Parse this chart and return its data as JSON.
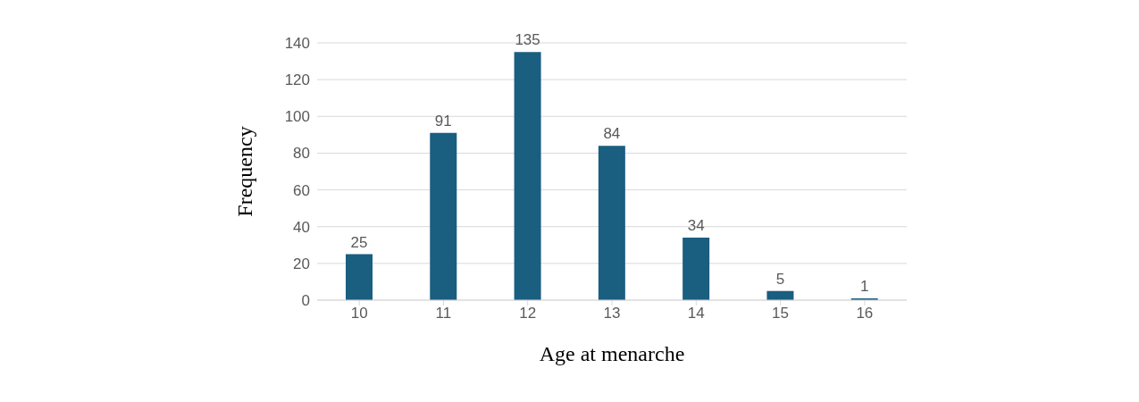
{
  "chart_data": {
    "type": "bar",
    "xlabel": "Age at menarche",
    "ylabel": "Frequency",
    "categories": [
      "10",
      "11",
      "12",
      "13",
      "14",
      "15",
      "16"
    ],
    "values": [
      25,
      91,
      135,
      84,
      34,
      5,
      1
    ],
    "color": "#1a5e80",
    "ylim": [
      0,
      140
    ],
    "yticks": [
      0,
      20,
      40,
      60,
      80,
      100,
      120,
      140
    ],
    "grid": "y",
    "data_labels": true
  }
}
